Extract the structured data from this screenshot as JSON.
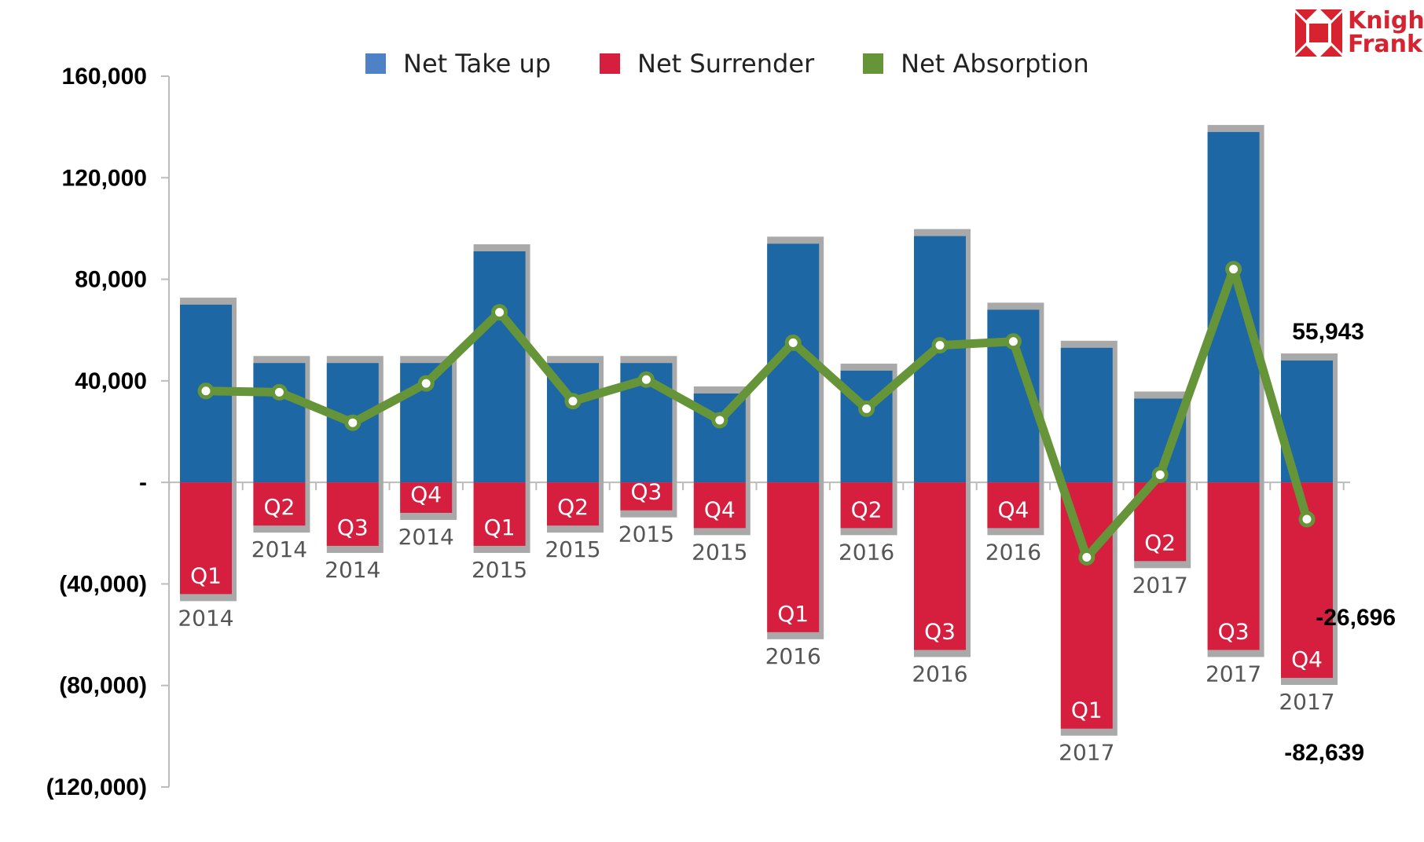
{
  "chart_data": {
    "type": "bar",
    "title": "",
    "xlabel": "",
    "ylabel": "",
    "ylim": [
      -120000,
      160000
    ],
    "y_ticks": [
      {
        "value": 160000,
        "label": "160,000"
      },
      {
        "value": 120000,
        "label": "120,000"
      },
      {
        "value": 80000,
        "label": "80,000"
      },
      {
        "value": 40000,
        "label": "40,000"
      },
      {
        "value": 0,
        "label": "-"
      },
      {
        "value": -40000,
        "label": "(40,000)"
      },
      {
        "value": -80000,
        "label": "(80,000)"
      },
      {
        "value": -120000,
        "label": "(120,000)"
      }
    ],
    "categories": [
      {
        "quarter": "Q1",
        "year": "2014"
      },
      {
        "quarter": "Q2",
        "year": "2014"
      },
      {
        "quarter": "Q3",
        "year": "2014"
      },
      {
        "quarter": "Q4",
        "year": "2014"
      },
      {
        "quarter": "Q1",
        "year": "2015"
      },
      {
        "quarter": "Q2",
        "year": "2015"
      },
      {
        "quarter": "Q3",
        "year": "2015"
      },
      {
        "quarter": "Q4",
        "year": "2015"
      },
      {
        "quarter": "Q1",
        "year": "2016"
      },
      {
        "quarter": "Q2",
        "year": "2016"
      },
      {
        "quarter": "Q3",
        "year": "2016"
      },
      {
        "quarter": "Q4",
        "year": "2016"
      },
      {
        "quarter": "Q1",
        "year": "2017"
      },
      {
        "quarter": "Q2",
        "year": "2017"
      },
      {
        "quarter": "Q3",
        "year": "2017"
      },
      {
        "quarter": "Q4",
        "year": "2017"
      }
    ],
    "series": [
      {
        "name": "Net Take up",
        "type": "bar",
        "color": "#1c67a4",
        "legend_color": "#4f81c7",
        "values": [
          70000,
          47000,
          47000,
          47000,
          91000,
          47000,
          47000,
          35000,
          94000,
          44000,
          97000,
          68000,
          53000,
          33000,
          138000,
          48000
        ]
      },
      {
        "name": "Net Surrender",
        "type": "bar",
        "color": "#d61f3e",
        "legend_color": "#d61f3e",
        "values": [
          -44000,
          -17000,
          -25000,
          -12000,
          -25000,
          -17000,
          -11000,
          -18000,
          -59000,
          -18000,
          -66000,
          -18000,
          -97000,
          -31000,
          -66000,
          -77000
        ]
      },
      {
        "name": "Net Absorption",
        "type": "line",
        "color": "#669438",
        "values": [
          36000,
          35500,
          23500,
          39000,
          67000,
          32000,
          40500,
          24500,
          55000,
          29000,
          54000,
          55500,
          -29500,
          3000,
          84000,
          -14500
        ]
      }
    ],
    "shadow_color": "#a9a9a9",
    "annotations": [
      "55,943",
      "-26,696",
      "-82,639"
    ],
    "legend_position": "top"
  },
  "brand": {
    "line1": "Knight",
    "line2": "Frank",
    "color": "#d6232f"
  }
}
